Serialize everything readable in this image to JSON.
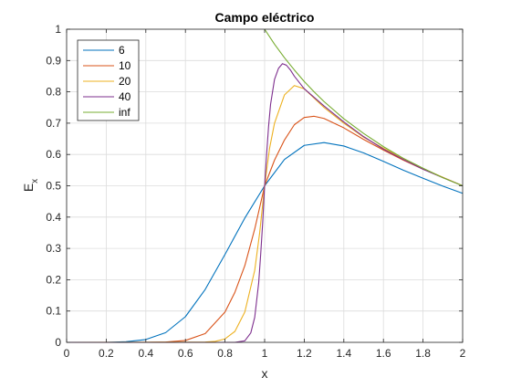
{
  "chart_data": {
    "type": "line",
    "title": "Campo eléctrico",
    "xlabel": "x",
    "ylabel_main": "E",
    "ylabel_sub": "x",
    "xlim": [
      0,
      2
    ],
    "ylim": [
      0,
      1
    ],
    "xticks": [
      0,
      0.2,
      0.4,
      0.6,
      0.8,
      1,
      1.2,
      1.4,
      1.6,
      1.8,
      2
    ],
    "xtick_labels": [
      "0",
      "0.2",
      "0.4",
      "0.6",
      "0.8",
      "1",
      "1.2",
      "1.4",
      "1.6",
      "1.8",
      "2"
    ],
    "yticks": [
      0,
      0.1,
      0.2,
      0.3,
      0.4,
      0.5,
      0.6,
      0.7,
      0.8,
      0.9,
      1
    ],
    "ytick_labels": [
      "0",
      "0.1",
      "0.2",
      "0.3",
      "0.4",
      "0.5",
      "0.6",
      "0.7",
      "0.8",
      "0.9",
      "1"
    ],
    "grid": true,
    "legend_position": "top-left",
    "series": [
      {
        "name": "6",
        "color": "#0072BD",
        "x": [
          0,
          0.1,
          0.2,
          0.3,
          0.4,
          0.5,
          0.6,
          0.7,
          0.8,
          0.9,
          1.0,
          1.1,
          1.2,
          1.3,
          1.4,
          1.5,
          1.6,
          1.7,
          1.8,
          1.9,
          2.0
        ],
        "y": [
          0,
          0.0,
          0.0,
          0.002,
          0.009,
          0.031,
          0.082,
          0.169,
          0.281,
          0.397,
          0.5,
          0.584,
          0.629,
          0.638,
          0.627,
          0.605,
          0.578,
          0.55,
          0.524,
          0.499,
          0.476
        ]
      },
      {
        "name": "10",
        "color": "#D95319",
        "x": [
          0,
          0.4,
          0.5,
          0.6,
          0.7,
          0.8,
          0.85,
          0.9,
          0.95,
          1.0,
          1.05,
          1.1,
          1.15,
          1.2,
          1.25,
          1.3,
          1.4,
          1.5,
          1.6,
          1.7,
          1.8,
          1.9,
          2.0
        ],
        "y": [
          0,
          0.0,
          0.001,
          0.006,
          0.028,
          0.097,
          0.16,
          0.245,
          0.362,
          0.5,
          0.582,
          0.646,
          0.695,
          0.718,
          0.722,
          0.715,
          0.685,
          0.648,
          0.614,
          0.582,
          0.553,
          0.527,
          0.5
        ]
      },
      {
        "name": "20",
        "color": "#EDB120",
        "x": [
          0,
          0.7,
          0.75,
          0.8,
          0.85,
          0.9,
          0.95,
          0.975,
          1.0,
          1.025,
          1.05,
          1.1,
          1.15,
          1.2,
          1.25,
          1.3,
          1.4,
          1.5,
          1.6,
          1.7,
          1.8,
          1.9,
          2.0
        ],
        "y": [
          0,
          0.001,
          0.003,
          0.011,
          0.035,
          0.097,
          0.23,
          0.35,
          0.5,
          0.62,
          0.7,
          0.79,
          0.82,
          0.81,
          0.78,
          0.75,
          0.7,
          0.655,
          0.62,
          0.587,
          0.555,
          0.527,
          0.5
        ]
      },
      {
        "name": "40",
        "color": "#7E2F8E",
        "x": [
          0,
          0.85,
          0.9,
          0.93,
          0.95,
          0.97,
          0.98,
          0.99,
          1.0,
          1.01,
          1.02,
          1.03,
          1.05,
          1.07,
          1.09,
          1.11,
          1.13,
          1.15,
          1.2,
          1.3,
          1.4,
          1.5,
          1.6,
          1.7,
          1.8,
          1.9,
          2.0
        ],
        "y": [
          0,
          0.0,
          0.005,
          0.03,
          0.08,
          0.19,
          0.28,
          0.38,
          0.5,
          0.6,
          0.69,
          0.76,
          0.84,
          0.875,
          0.89,
          0.885,
          0.87,
          0.85,
          0.81,
          0.755,
          0.704,
          0.657,
          0.617,
          0.584,
          0.553,
          0.526,
          0.5
        ]
      },
      {
        "name": "inf",
        "color": "#77AC30",
        "x": [
          1.0,
          1.05,
          1.1,
          1.15,
          1.2,
          1.25,
          1.3,
          1.4,
          1.5,
          1.6,
          1.7,
          1.8,
          1.9,
          2.0
        ],
        "y": [
          1.0,
          0.952,
          0.909,
          0.87,
          0.833,
          0.8,
          0.769,
          0.714,
          0.667,
          0.625,
          0.588,
          0.556,
          0.526,
          0.5
        ]
      }
    ]
  }
}
